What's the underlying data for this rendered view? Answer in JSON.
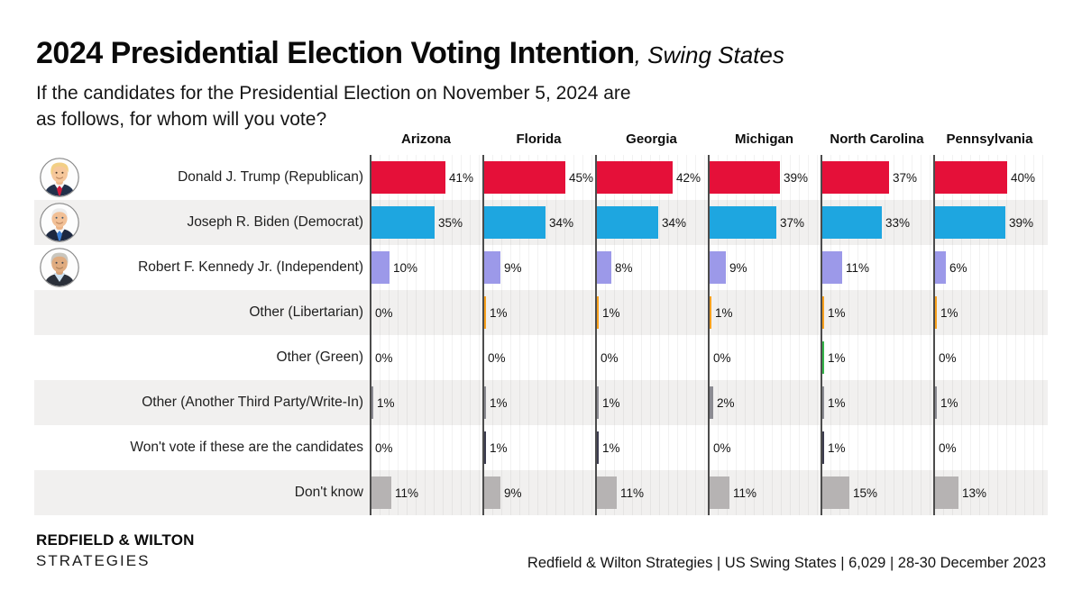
{
  "header": {
    "title": "2024 Presidential Election Voting Intention",
    "title_suffix": ", Swing States",
    "subtitle_line1": "If the candidates for the Presidential Election on November 5, 2024 are",
    "subtitle_line2": "as follows, for whom will you vote?"
  },
  "chart_data": {
    "type": "bar",
    "orientation": "horizontal",
    "value_suffix": "%",
    "axis_max_pct": 62,
    "grid_step_pct": 5,
    "categories": [
      "Arizona",
      "Florida",
      "Georgia",
      "Michigan",
      "North Carolina",
      "Pennsylvania"
    ],
    "series": [
      {
        "name": "Donald J. Trump (Republican)",
        "avatar": "trump-avatar",
        "color": "#e51039",
        "values": [
          41,
          45,
          42,
          39,
          37,
          40
        ]
      },
      {
        "name": "Joseph R. Biden (Democrat)",
        "avatar": "biden-avatar",
        "color": "#1ea6e0",
        "values": [
          35,
          34,
          34,
          37,
          33,
          39
        ]
      },
      {
        "name": "Robert F. Kennedy Jr. (Independent)",
        "avatar": "kennedy-avatar",
        "color": "#9c99e9",
        "values": [
          10,
          9,
          8,
          9,
          11,
          6
        ]
      },
      {
        "name": "Other (Libertarian)",
        "avatar": null,
        "color": "#f8a11e",
        "values": [
          0,
          1,
          1,
          1,
          1,
          1
        ]
      },
      {
        "name": "Other (Green)",
        "avatar": null,
        "color": "#35b44a",
        "values": [
          0,
          0,
          0,
          0,
          1,
          0
        ]
      },
      {
        "name": "Other (Another Third Party/Write-In)",
        "avatar": null,
        "color": "#8b8b92",
        "values": [
          1,
          1,
          1,
          2,
          1,
          1
        ]
      },
      {
        "name": "Won't vote if these are the candidates",
        "avatar": null,
        "color": "#3c3c4f",
        "values": [
          0,
          1,
          1,
          0,
          1,
          0
        ]
      },
      {
        "name": "Don't know",
        "avatar": null,
        "color": "#b6b3b3",
        "values": [
          11,
          9,
          11,
          11,
          15,
          13
        ]
      }
    ]
  },
  "footer": {
    "logo_line1": "REDFIELD & WILTON",
    "logo_line2": "STRATEGIES",
    "source": "Redfield & Wilton Strategies | US Swing States | 6,029 | 28-30 December 2023"
  }
}
